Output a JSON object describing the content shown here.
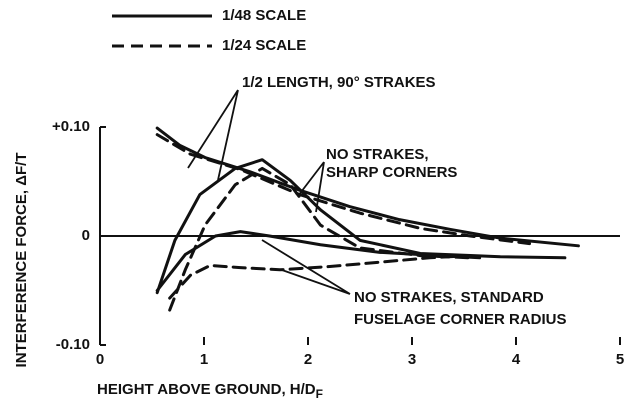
{
  "chart_data": {
    "type": "line",
    "x_label": "HEIGHT ABOVE GROUND, H/D",
    "x_label_subscript": "F",
    "y_label": "INTERFERENCE FORCE, ΔF/T",
    "legend": [
      {
        "name": "1/48 SCALE",
        "dash": "solid"
      },
      {
        "name": "1/24 SCALE",
        "dash": "dashed"
      }
    ],
    "annotations": [
      "1/2 LENGTH, 90° STRAKES",
      "NO STRAKES,",
      "SHARP CORNERS",
      "NO STRAKES, STANDARD",
      "FUSELAGE CORNER RADIUS"
    ],
    "xlim": [
      0,
      5
    ],
    "xticks": [
      0,
      1,
      2,
      3,
      4,
      5
    ],
    "ylim": [
      -0.1,
      0.1
    ],
    "yticks": [
      {
        "value": -0.1,
        "label": "-0.10"
      },
      0,
      {
        "value": 0.1,
        "label": "+0.10"
      }
    ],
    "color": "#111111",
    "series": [
      {
        "dash": "solid",
        "x": [
          0.55,
          0.77,
          1.01,
          1.44,
          1.92,
          2.4,
          2.88,
          3.37,
          3.85,
          4.6
        ],
        "values": [
          0.099,
          0.083,
          0.072,
          0.059,
          0.042,
          0.027,
          0.015,
          0.006,
          -0.002,
          -0.009
        ]
      },
      {
        "dash": "dashed",
        "x": [
          0.55,
          0.87,
          1.35,
          1.92,
          2.5,
          3.08,
          3.56,
          4.13
        ],
        "values": [
          0.093,
          0.075,
          0.061,
          0.038,
          0.021,
          0.007,
          0,
          -0.007
        ]
      },
      {
        "dash": "solid",
        "x": [
          0.55,
          0.72,
          0.96,
          1.3,
          1.56,
          1.83,
          2.12,
          2.5,
          3.08,
          3.85,
          4.47
        ],
        "values": [
          -0.052,
          -0.004,
          0.038,
          0.062,
          0.07,
          0.051,
          0.024,
          -0.004,
          -0.016,
          -0.019,
          -0.02
        ]
      },
      {
        "dash": "dashed",
        "x": [
          0.67,
          0.82,
          1.01,
          1.3,
          1.56,
          1.83,
          2.12,
          2.5,
          3.08,
          3.56
        ],
        "values": [
          -0.068,
          -0.031,
          0.01,
          0.047,
          0.062,
          0.047,
          0.01,
          -0.011,
          -0.018,
          -0.02
        ]
      },
      {
        "dash": "solid",
        "x": [
          0.55,
          0.82,
          1.11,
          1.35,
          1.63,
          2.12,
          2.69,
          3.27,
          3.65
        ],
        "values": [
          -0.05,
          -0.017,
          0,
          0.004,
          0,
          -0.008,
          -0.015,
          -0.018,
          -0.02
        ]
      },
      {
        "dash": "dashed",
        "x": [
          0.67,
          0.87,
          1.06,
          1.35,
          1.73,
          2.21,
          2.69,
          3.17,
          3.56
        ],
        "values": [
          -0.057,
          -0.036,
          -0.027,
          -0.029,
          -0.031,
          -0.028,
          -0.024,
          -0.02,
          -0.018
        ]
      }
    ]
  }
}
